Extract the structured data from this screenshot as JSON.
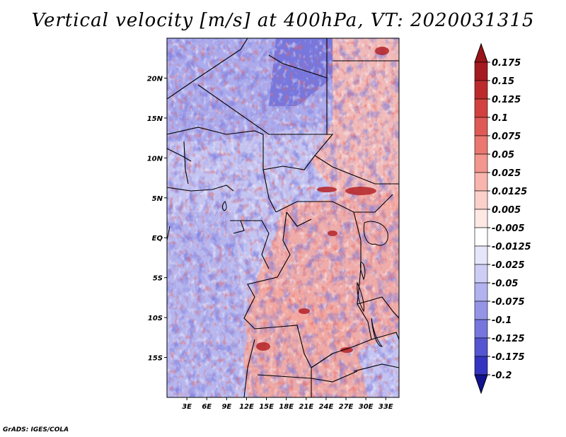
{
  "title": "Vertical velocity [m/s] at 400hPa, VT: 2020031315",
  "credit": "GrADS: IGES/COLA",
  "map": {
    "lon_range": [
      0,
      35
    ],
    "lat_range": [
      -20,
      25
    ],
    "lat_ticks": [
      {
        "value": 20,
        "label": "20N"
      },
      {
        "value": 15,
        "label": "15N"
      },
      {
        "value": 10,
        "label": "10N"
      },
      {
        "value": 5,
        "label": "5N"
      },
      {
        "value": 0,
        "label": "EQ"
      },
      {
        "value": -5,
        "label": "5S"
      },
      {
        "value": -10,
        "label": "10S"
      },
      {
        "value": -15,
        "label": "15S"
      }
    ],
    "lon_ticks": [
      {
        "value": 3,
        "label": "3E"
      },
      {
        "value": 6,
        "label": "6E"
      },
      {
        "value": 9,
        "label": "9E"
      },
      {
        "value": 12,
        "label": "12E"
      },
      {
        "value": 15,
        "label": "15E"
      },
      {
        "value": 18,
        "label": "18E"
      },
      {
        "value": 21,
        "label": "21E"
      },
      {
        "value": 24,
        "label": "24E"
      },
      {
        "value": 27,
        "label": "27E"
      },
      {
        "value": 30,
        "label": "30E"
      },
      {
        "value": 33,
        "label": "33E"
      }
    ]
  },
  "colorbar": {
    "levels": [
      {
        "label": "0.175",
        "color": "#a51a1f"
      },
      {
        "label": "0.15",
        "color": "#bd2a2d"
      },
      {
        "label": "0.125",
        "color": "#d2413f"
      },
      {
        "label": "0.1",
        "color": "#e05a55"
      },
      {
        "label": "0.075",
        "color": "#ea7770"
      },
      {
        "label": "0.05",
        "color": "#f2968e"
      },
      {
        "label": "0.025",
        "color": "#f8b4ad"
      },
      {
        "label": "0.0125",
        "color": "#fbd0ca"
      },
      {
        "label": "0.005",
        "color": "#fde8e4"
      },
      {
        "label": "-0.005",
        "color": "#ffffff"
      },
      {
        "label": "-0.0125",
        "color": "#e6e6fb"
      },
      {
        "label": "-0.025",
        "color": "#cdcdf6"
      },
      {
        "label": "-0.05",
        "color": "#b2b2f0"
      },
      {
        "label": "-0.075",
        "color": "#9595e8"
      },
      {
        "label": "-0.1",
        "color": "#7676de"
      },
      {
        "label": "-0.125",
        "color": "#5555d2"
      },
      {
        "label": "-0.175",
        "color": "#3434c0"
      },
      {
        "label": "-0.2",
        "color": "#1e1ea6"
      }
    ],
    "top_arrow_color": "#9b1418",
    "bottom_arrow_color": "#12128f"
  }
}
